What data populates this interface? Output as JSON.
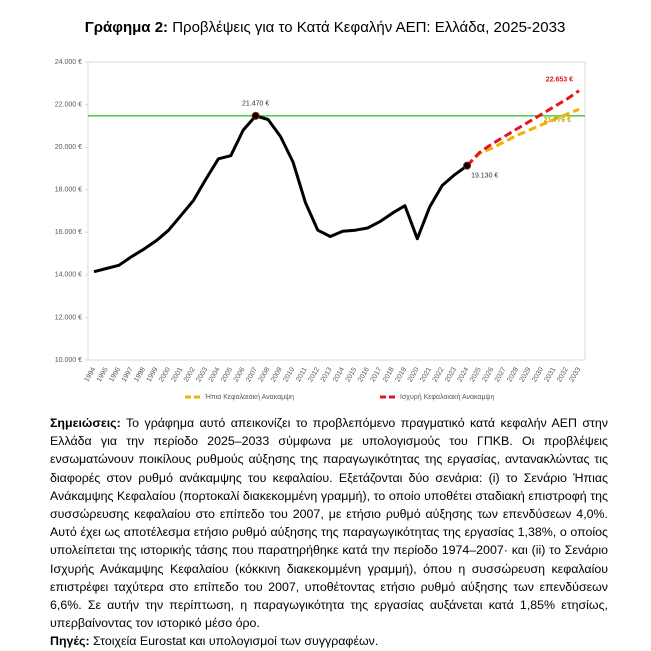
{
  "chart_data": {
    "type": "line",
    "title": {
      "label": "Γράφημα 2:",
      "text": "Προβλέψεις για το Κατά Κεφαλήν ΑΕΠ: Ελλάδα, 2025-2033"
    },
    "x": [
      "1994",
      "1995",
      "1996",
      "1997",
      "1998",
      "1999",
      "2000",
      "2001",
      "2002",
      "2003",
      "2004",
      "2005",
      "2006",
      "2007",
      "2008",
      "2009",
      "2010",
      "2011",
      "2012",
      "2013",
      "2014",
      "2015",
      "2016",
      "2017",
      "2018",
      "2019",
      "2020",
      "2021",
      "2022",
      "2023",
      "2024",
      "2025",
      "2026",
      "2027",
      "2028",
      "2029",
      "2030",
      "2031",
      "2032",
      "2033"
    ],
    "series": [
      {
        "color": "#000000",
        "dash": false,
        "values": [
          14150,
          14300,
          14450,
          14850,
          15200,
          15600,
          16100,
          16800,
          17500,
          18500,
          19450,
          19600,
          20800,
          21470,
          21300,
          20500,
          19300,
          17400,
          16100,
          15800,
          16050,
          16100,
          16200,
          16500,
          16900,
          17250,
          15700,
          17200,
          18200,
          18700,
          19130,
          null,
          null,
          null,
          null,
          null,
          null,
          null,
          null,
          null
        ]
      },
      {
        "name": "Ήπια Κεφαλαιακή Ανακαμψη",
        "color": "#f0b400",
        "dash": true,
        "values": [
          null,
          null,
          null,
          null,
          null,
          null,
          null,
          null,
          null,
          null,
          null,
          null,
          null,
          null,
          null,
          null,
          null,
          null,
          null,
          null,
          null,
          null,
          null,
          null,
          null,
          null,
          null,
          null,
          null,
          null,
          19130,
          19700,
          19950,
          20250,
          20550,
          20800,
          21050,
          21300,
          21550,
          21776
        ]
      },
      {
        "name": "Ισχυρή Κεφαλαιακή Ανακαμψη",
        "color": "#e8141c",
        "dash": true,
        "values": [
          null,
          null,
          null,
          null,
          null,
          null,
          null,
          null,
          null,
          null,
          null,
          null,
          null,
          null,
          null,
          null,
          null,
          null,
          null,
          null,
          null,
          null,
          null,
          null,
          null,
          null,
          null,
          null,
          null,
          null,
          19130,
          19750,
          20150,
          20500,
          20850,
          21200,
          21550,
          21900,
          22250,
          22653
        ]
      }
    ],
    "reference_line": {
      "value": 21470,
      "color": "#22c022"
    },
    "annotations": [
      {
        "x": "2007",
        "value": 21470,
        "label": "21.470 €",
        "color": "#333333"
      },
      {
        "x": "2024",
        "value": 19130,
        "label": "19.130 €",
        "color": "#333333"
      },
      {
        "x": "2033",
        "value": 22653,
        "label": "22.653 €",
        "color": "#e8141c"
      },
      {
        "x": "2033",
        "value": 21776,
        "label": "21.776 €",
        "color": "#d4a000"
      }
    ],
    "ylim": [
      10000,
      24000
    ],
    "yticks": [
      {
        "value": 10000,
        "label": "10.000 €"
      },
      {
        "value": 12000,
        "label": "12.000 €"
      },
      {
        "value": 14000,
        "label": "14.000 €"
      },
      {
        "value": 16000,
        "label": "16.000 €"
      },
      {
        "value": 18000,
        "label": "18.000 €"
      },
      {
        "value": 20000,
        "label": "20.000 €"
      },
      {
        "value": 22000,
        "label": "22.000 €"
      },
      {
        "value": 24000,
        "label": "24.000 €"
      }
    ],
    "grid": false
  },
  "notes": {
    "label": "Σημειώσεις:",
    "text": "Το γράφημα αυτό απεικονίζει το προβλεπόμενο πραγματικό κατά κεφαλήν ΑΕΠ στην Ελλάδα για την περίοδο 2025–2033 σύμφωνα με υπολογισμούς του ΓΠΚΒ. Οι προβλέψεις ενσωματώνουν ποικίλους ρυθμούς αύξησης της παραγωγικότητας της εργασίας, αντανακλώντας τις διαφορές στον ρυθμό ανάκαμψης του κεφαλαίου. Εξετάζονται δύο σενάρια: (i) το Σενάριο Ήπιας Ανάκαμψης Κεφαλαίου (πορτοκαλί διακεκομμένη γραμμή), το οποίο υποθέτει σταδιακή επιστροφή της συσσώρευσης κεφαλαίου στο επίπεδο του 2007, με ετήσιο ρυθμό αύξησης των επενδύσεων 4,0%. Αυτό έχει ως αποτέλεσμα ετήσιο ρυθμό αύξησης της παραγωγικότητας της εργασίας 1,38%, ο οποίος υπολείπεται της ιστορικής τάσης που παρατηρήθηκε κατά την περίοδο 1974–2007· και (ii) το Σενάριο Ισχυρής Ανάκαμψης Κεφαλαίου (κόκκινη διακεκομμένη γραμμή), όπου η συσσώρευση κεφαλαίου επιστρέφει ταχύτερα στο επίπεδο του 2007, υποθέτοντας ετήσιο ρυθμό αύξησης των επενδύσεων 6,6%. Σε αυτήν την περίπτωση, η παραγωγικότητα της εργασίας αυξάνεται κατά 1,85% ετησίως, υπερβαίνοντας τον ιστορικό μέσο όρο."
  },
  "source": {
    "label": "Πηγές:",
    "text": "Στοιχεία Eurostat και υπολογισμοί των συγγραφέων."
  }
}
